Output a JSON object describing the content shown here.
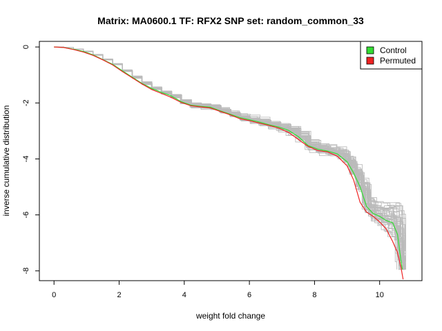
{
  "chart_data": {
    "type": "line",
    "title": "Matrix: MA0600.1 TF: RFX2 SNP set: random_common_33",
    "xlabel": "weight fold change",
    "ylabel": "inverse cumulative distribution",
    "xlim": [
      -0.45,
      11.3
    ],
    "ylim": [
      -8.35,
      0.2
    ],
    "x_ticks": [
      0,
      2,
      4,
      6,
      8,
      10
    ],
    "x_tick_labels": [
      "0",
      "2",
      "4",
      "6",
      "8",
      "10"
    ],
    "y_ticks": [
      0,
      -2,
      -4,
      -6,
      -8
    ],
    "y_tick_labels": [
      "0",
      "-2",
      "-4",
      "-6",
      "-8"
    ],
    "grid": false,
    "legend": {
      "position": "top-right",
      "entries": [
        {
          "label": "Control",
          "color": "#33dd33"
        },
        {
          "label": "Permuted",
          "color": "#ee2222"
        }
      ]
    },
    "series": [
      {
        "name": "Control",
        "color": "#33dd33",
        "x": [
          0,
          0.3,
          0.6,
          0.9,
          1.2,
          1.5,
          1.8,
          2.1,
          2.4,
          2.7,
          3.0,
          3.3,
          3.6,
          3.9,
          4.2,
          4.5,
          4.8,
          5.1,
          5.4,
          5.7,
          6.0,
          6.3,
          6.6,
          6.9,
          7.2,
          7.5,
          7.8,
          8.1,
          8.4,
          8.7,
          9.0,
          9.2,
          9.4,
          9.6,
          9.8,
          10.0,
          10.2,
          10.4,
          10.55,
          10.65,
          10.7
        ],
        "y": [
          0,
          -0.02,
          -0.08,
          -0.16,
          -0.28,
          -0.45,
          -0.62,
          -0.85,
          -1.08,
          -1.3,
          -1.48,
          -1.62,
          -1.75,
          -1.95,
          -2.08,
          -2.12,
          -2.15,
          -2.28,
          -2.4,
          -2.52,
          -2.6,
          -2.68,
          -2.78,
          -2.86,
          -2.98,
          -3.2,
          -3.52,
          -3.65,
          -3.72,
          -3.82,
          -4.1,
          -4.5,
          -5.0,
          -5.7,
          -5.95,
          -6.05,
          -6.2,
          -6.28,
          -6.7,
          -7.6,
          -7.95
        ]
      },
      {
        "name": "Permuted",
        "color": "#ee2222",
        "x": [
          0,
          0.3,
          0.6,
          0.9,
          1.2,
          1.5,
          1.8,
          2.1,
          2.4,
          2.7,
          3.0,
          3.3,
          3.6,
          3.9,
          4.2,
          4.5,
          4.8,
          5.1,
          5.4,
          5.7,
          6.0,
          6.3,
          6.6,
          6.9,
          7.2,
          7.5,
          7.8,
          8.1,
          8.4,
          8.7,
          9.0,
          9.2,
          9.4,
          9.6,
          9.8,
          10.0,
          10.2,
          10.4,
          10.55,
          10.65,
          10.72
        ],
        "y": [
          0,
          -0.02,
          -0.09,
          -0.18,
          -0.3,
          -0.46,
          -0.64,
          -0.88,
          -1.1,
          -1.32,
          -1.52,
          -1.66,
          -1.8,
          -1.98,
          -2.1,
          -2.14,
          -2.18,
          -2.3,
          -2.42,
          -2.56,
          -2.63,
          -2.72,
          -2.8,
          -2.9,
          -3.05,
          -3.3,
          -3.55,
          -3.7,
          -3.75,
          -3.9,
          -4.25,
          -4.75,
          -5.55,
          -5.9,
          -6.05,
          -6.25,
          -6.5,
          -6.95,
          -7.35,
          -7.85,
          -8.3
        ]
      }
    ],
    "background_series": {
      "count": 40,
      "color": "#bbbbbb"
    }
  }
}
